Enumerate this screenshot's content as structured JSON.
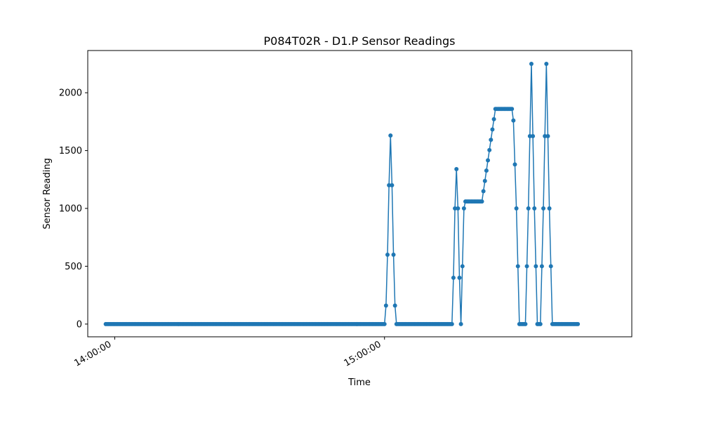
{
  "chart_data": {
    "type": "line",
    "title": "P084T02R - D1.P Sensor Readings",
    "xlabel": "Time",
    "ylabel": "Sensor Reading",
    "xlim": [
      "13:54:00",
      "15:55:00"
    ],
    "ylim": [
      -110,
      2365
    ],
    "x_ticks": [
      "14:00:00",
      "15:00:00"
    ],
    "y_ticks": [
      0,
      500,
      1000,
      1500,
      2000
    ],
    "grid": false,
    "legend": "none",
    "marker": "circle",
    "series": [
      {
        "color": "#1f77b4",
        "points": [
          [
            "13:58:00",
            0
          ],
          [
            "15:00:00",
            0
          ],
          [
            "15:00:20",
            160
          ],
          [
            "15:00:40",
            600
          ],
          [
            "15:01:00",
            1200
          ],
          [
            "15:01:20",
            1630
          ],
          [
            "15:01:40",
            1200
          ],
          [
            "15:02:00",
            600
          ],
          [
            "15:02:20",
            160
          ],
          [
            "15:02:40",
            0
          ],
          [
            "15:15:00",
            0
          ],
          [
            "15:15:20",
            400
          ],
          [
            "15:15:40",
            1000
          ],
          [
            "15:16:00",
            1340
          ],
          [
            "15:16:20",
            1000
          ],
          [
            "15:16:40",
            400
          ],
          [
            "15:17:00",
            0
          ],
          [
            "15:17:20",
            500
          ],
          [
            "15:17:40",
            1000
          ],
          [
            "15:18:00",
            1060
          ],
          [
            "15:21:40",
            1060
          ],
          [
            "15:24:40",
            1860
          ],
          [
            "15:28:20",
            1860
          ],
          [
            "15:28:40",
            1760
          ],
          [
            "15:29:20",
            1000
          ],
          [
            "15:30:00",
            0
          ],
          [
            "15:31:20",
            0
          ],
          [
            "15:32:00",
            1000
          ],
          [
            "15:32:40",
            2250
          ],
          [
            "15:33:20",
            1000
          ],
          [
            "15:34:00",
            0
          ],
          [
            "15:34:40",
            0
          ],
          [
            "15:35:20",
            1000
          ],
          [
            "15:36:00",
            2250
          ],
          [
            "15:36:40",
            1000
          ],
          [
            "15:37:20",
            0
          ],
          [
            "15:43:00",
            0
          ]
        ]
      }
    ]
  }
}
